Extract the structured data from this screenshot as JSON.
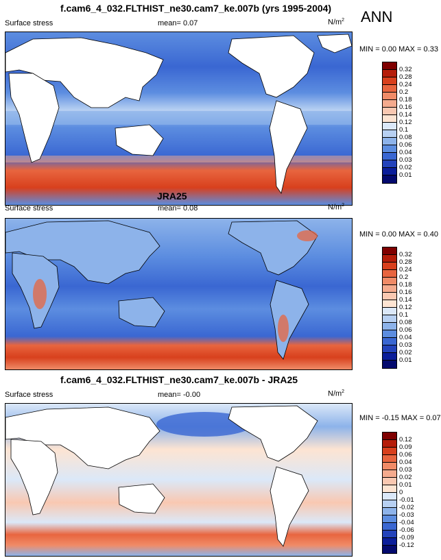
{
  "season_label": "ANN",
  "colors": {
    "ocean_deep": "#1f3fc4",
    "ocean_mid": "#4a7fe0",
    "ocean_light": "#b9d6f4",
    "land": "#ffffff",
    "warm": "#e8563a",
    "warm_light": "#f6c3aa"
  },
  "panels": [
    {
      "title": "f.cam6_4_032.FLTHIST_ne30.cam7_ke.007b (yrs 1995-2004)",
      "left_label": "Surface stress",
      "mean_text": "mean=  0.07",
      "units_text": "N/m",
      "units_sup": "2",
      "minmax_text": "MIN =  0.00 MAX =  0.33",
      "legend": [
        "0.32",
        "0.28",
        "0.24",
        "0.2",
        "0.18",
        "0.16",
        "0.14",
        "0.12",
        "0.1",
        "0.08",
        "0.06",
        "0.04",
        "0.03",
        "0.02",
        "0.01"
      ]
    },
    {
      "title": "JRA25",
      "left_label": "Surface stress",
      "mean_text": "mean=  0.08",
      "units_text": "N/m",
      "units_sup": "2",
      "minmax_text": "MIN =  0.00 MAX =  0.40",
      "legend": [
        "0.32",
        "0.28",
        "0.24",
        "0.2",
        "0.18",
        "0.16",
        "0.14",
        "0.12",
        "0.1",
        "0.08",
        "0.06",
        "0.04",
        "0.03",
        "0.02",
        "0.01"
      ]
    },
    {
      "title": "f.cam6_4_032.FLTHIST_ne30.cam7_ke.007b - JRA25",
      "left_label": "Surface stress",
      "mean_text": "mean=  -0.00",
      "units_text": "N/m",
      "units_sup": "2",
      "minmax_text": "MIN = -0.15 MAX =  0.07",
      "legend": [
        "0.12",
        "0.09",
        "0.06",
        "0.04",
        "0.03",
        "0.02",
        "0.01",
        "0",
        "-0.01",
        "-0.02",
        "-0.03",
        "-0.04",
        "-0.06",
        "-0.09",
        "-0.12"
      ]
    }
  ],
  "legend_colors": [
    "#7f0000",
    "#b51d0a",
    "#d8401d",
    "#e8653f",
    "#f08b67",
    "#f5ab8e",
    "#f9c8b1",
    "#fde4d2",
    "#dbe8f8",
    "#b7d0f2",
    "#8db3ea",
    "#5c8de0",
    "#3a67d2",
    "#2343bb",
    "#0b1e9a",
    "#040a6e"
  ]
}
